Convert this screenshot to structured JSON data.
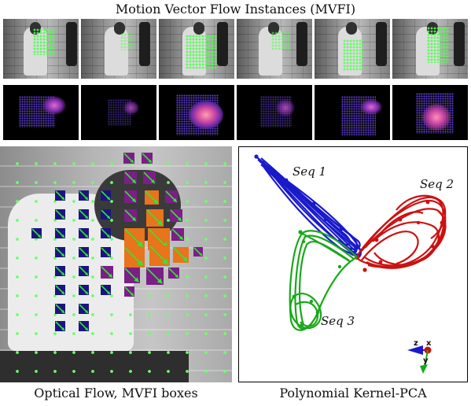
{
  "title": "Motion Vector Flow Instances (MVFI)",
  "frames": [
    {
      "id": "frame-1"
    },
    {
      "id": "frame-2"
    },
    {
      "id": "frame-3"
    },
    {
      "id": "frame-4"
    },
    {
      "id": "frame-5"
    },
    {
      "id": "frame-6"
    }
  ],
  "captions": {
    "left": "Optical Flow, MVFI boxes",
    "right": "Polynomial Kernel-PCA"
  },
  "pca": {
    "seq1": "Seq 1",
    "seq2": "Seq 2",
    "seq3": "Seq 3",
    "axes": {
      "z": "z",
      "x": "x",
      "y": "y"
    },
    "colors": {
      "seq1": "#1a1acc",
      "seq2": "#cc1111",
      "seq3": "#1aa81a"
    }
  },
  "colors": {
    "box_purple": "#7a1f86",
    "box_navy": "#1a1480",
    "box_orange": "#e8741c",
    "arrow_green": "#33e633",
    "flow_green": "#4cff4c"
  }
}
